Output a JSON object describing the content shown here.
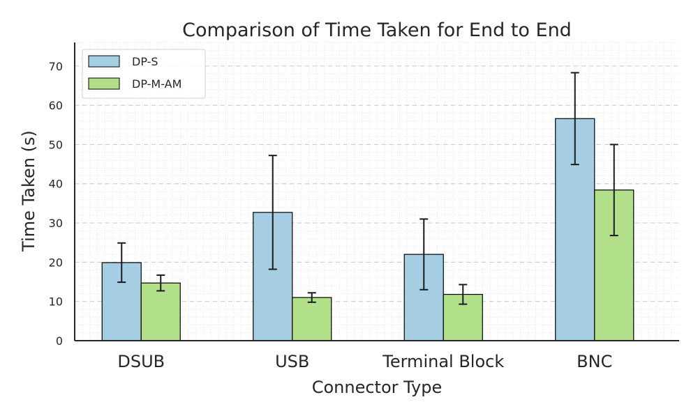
{
  "chart_data": {
    "type": "bar",
    "title": "Comparison of Time Taken for End to End",
    "xlabel": "Connector Type",
    "ylabel": "Time Taken (s)",
    "categories": [
      "DSUB",
      "USB",
      "Terminal Block",
      "BNC"
    ],
    "series": [
      {
        "name": "DP-S",
        "color": "#a6cee3",
        "values": [
          19.9,
          32.7,
          22.0,
          56.6
        ],
        "errors": [
          5.0,
          14.5,
          9.0,
          11.7
        ]
      },
      {
        "name": "DP-M-AM",
        "color": "#b2df8a",
        "values": [
          14.7,
          11.0,
          11.8,
          38.4
        ],
        "errors": [
          2.0,
          1.2,
          2.5,
          11.6
        ]
      }
    ],
    "ylim": [
      0,
      76
    ],
    "yticks": [
      0,
      10,
      20,
      30,
      40,
      50,
      60,
      70
    ],
    "grid": true,
    "legend": "top-left"
  }
}
